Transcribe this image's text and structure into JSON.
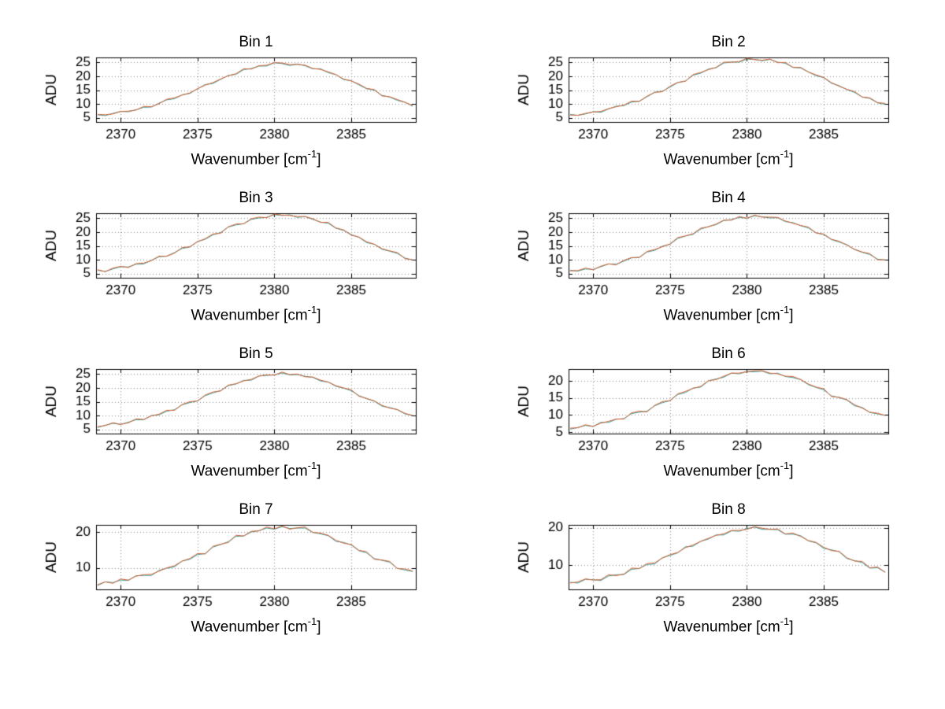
{
  "figure": {
    "background": "#ffffff"
  },
  "axis_labels": {
    "ylabel": "ADU",
    "xlabel_pre": "Wavenumber [cm",
    "xlabel_sup": "-1",
    "xlabel_post": "]"
  },
  "chart_data": {
    "type": "line",
    "grid": true,
    "xlim": [
      2368.4,
      2389.2
    ],
    "x_ticks": [
      2370,
      2375,
      2380,
      2385
    ],
    "x": [
      2368.5,
      2369,
      2369.5,
      2370,
      2370.5,
      2371,
      2371.5,
      2372,
      2372.5,
      2373,
      2373.5,
      2374,
      2374.5,
      2375,
      2375.5,
      2376,
      2376.5,
      2377,
      2377.5,
      2378,
      2378.5,
      2379,
      2379.5,
      2380,
      2380.5,
      2381,
      2381.5,
      2382,
      2382.5,
      2383,
      2383.5,
      2384,
      2384.5,
      2385,
      2385.5,
      2386,
      2386.5,
      2387,
      2387.5,
      2388,
      2388.5,
      2389
    ],
    "subplots": [
      {
        "title": "Bin 1",
        "yticks": [
          5,
          10,
          15,
          20,
          25
        ],
        "ylim": [
          3.5,
          26.8
        ],
        "series": [
          {
            "name": "trace-teal",
            "color": "#2f9e9e",
            "values": [
              6.1,
              5.8,
              6.6,
              7.3,
              7.2,
              7.9,
              8.8,
              8.9,
              10.3,
              11.5,
              11.9,
              13.3,
              13.8,
              15.5,
              17.0,
              17.4,
              18.9,
              20.3,
              20.7,
              22.4,
              22.8,
              23.7,
              23.7,
              24.9,
              24.6,
              23.9,
              24.4,
              23.8,
              22.7,
              22.7,
              21.3,
              20.6,
              18.8,
              18.4,
              16.9,
              15.5,
              15.0,
              13.1,
              12.5,
              11.3,
              10.6,
              9.2
            ]
          },
          {
            "name": "trace-orange",
            "color": "#d95f30",
            "values": [
              6.2,
              6.1,
              6.4,
              7.3,
              7.4,
              7.8,
              9.1,
              9.0,
              10.1,
              11.7,
              12.2,
              13.2,
              14.0,
              15.5,
              16.8,
              17.7,
              19.0,
              20.2,
              20.9,
              22.7,
              22.6,
              23.8,
              24.0,
              24.9,
              24.8,
              24.2,
              24.3,
              24.0,
              22.8,
              22.5,
              21.6,
              20.6,
              19.0,
              18.3,
              17.2,
              15.6,
              15.2,
              12.9,
              12.6,
              11.6,
              10.6,
              9.4
            ]
          }
        ]
      },
      {
        "title": "Bin 2",
        "yticks": [
          5,
          10,
          15,
          20,
          25
        ],
        "ylim": [
          3.5,
          26.8
        ],
        "series": [
          {
            "name": "trace-teal",
            "color": "#2f9e9e",
            "values": [
              6.2,
              5.9,
              6.4,
              7.2,
              7.0,
              8.2,
              9.2,
              9.4,
              10.7,
              11.0,
              12.6,
              14.2,
              14.6,
              16.1,
              17.7,
              18.3,
              20.4,
              21.1,
              22.6,
              23.1,
              24.8,
              25.1,
              25.1,
              26.2,
              26.1,
              25.6,
              26.1,
              25.1,
              24.7,
              23.2,
              23.0,
              21.6,
              20.2,
              19.5,
              17.5,
              16.6,
              15.2,
              14.2,
              12.5,
              12.0,
              10.4,
              9.9
            ]
          },
          {
            "name": "trace-orange",
            "color": "#d95f30",
            "values": [
              6.0,
              5.9,
              6.6,
              7.1,
              7.3,
              8.3,
              9.0,
              9.6,
              11.0,
              10.9,
              12.8,
              14.2,
              14.4,
              16.4,
              17.8,
              18.2,
              20.6,
              21.4,
              22.4,
              23.2,
              25.1,
              25.1,
              25.3,
              26.5,
              26.0,
              25.8,
              26.2,
              24.9,
              25.0,
              23.2,
              23.2,
              21.5,
              20.5,
              19.6,
              17.7,
              16.4,
              15.3,
              14.5,
              12.5,
              12.2,
              10.5,
              10.2
            ]
          }
        ]
      },
      {
        "title": "Bin 3",
        "yticks": [
          5,
          10,
          15,
          20,
          25
        ],
        "ylim": [
          3.5,
          26.8
        ],
        "series": [
          {
            "name": "trace-teal",
            "color": "#2f9e9e",
            "values": [
              6.2,
              5.8,
              6.7,
              7.5,
              7.4,
              8.4,
              8.5,
              9.8,
              11.1,
              11.3,
              12.6,
              14.1,
              14.6,
              16.6,
              17.4,
              19.0,
              19.8,
              21.8,
              22.6,
              23.0,
              24.6,
              25.1,
              25.3,
              26.3,
              26.0,
              26.2,
              25.3,
              25.6,
              24.6,
              23.6,
              23.2,
              21.4,
              20.6,
              19.1,
              18.1,
              16.2,
              15.6,
              13.8,
              13.1,
              12.3,
              10.6,
              9.9
            ]
          },
          {
            "name": "trace-orange",
            "color": "#d95f30",
            "values": [
              6.4,
              5.7,
              7.0,
              7.6,
              7.2,
              8.6,
              8.8,
              9.7,
              11.3,
              11.3,
              12.4,
              14.4,
              14.7,
              16.5,
              17.6,
              19.3,
              19.6,
              21.9,
              22.9,
              23.0,
              24.8,
              25.4,
              25.2,
              26.5,
              26.1,
              26.0,
              25.6,
              25.6,
              24.8,
              23.5,
              23.5,
              21.5,
              20.8,
              18.9,
              18.2,
              16.5,
              15.6,
              14.0,
              13.2,
              12.6,
              10.4,
              10.0
            ]
          }
        ]
      },
      {
        "title": "Bin 4",
        "yticks": [
          5,
          10,
          15,
          20,
          25
        ],
        "ylim": [
          3.5,
          26.8
        ],
        "series": [
          {
            "name": "trace-teal",
            "color": "#2f9e9e",
            "values": [
              6.2,
              5.9,
              6.7,
              6.5,
              7.5,
              8.5,
              8.4,
              9.5,
              10.7,
              10.9,
              12.8,
              13.4,
              14.9,
              15.6,
              17.7,
              18.6,
              19.2,
              21.1,
              22.0,
              22.7,
              24.2,
              24.5,
              25.3,
              25.0,
              25.9,
              25.5,
              25.1,
              25.2,
              23.8,
              23.4,
              22.3,
              21.5,
              19.7,
              19.1,
              17.3,
              16.4,
              15.5,
              13.7,
              12.7,
              11.9,
              10.2,
              9.9
            ]
          },
          {
            "name": "trace-orange",
            "color": "#d95f30",
            "values": [
              6.0,
              6.1,
              7.0,
              6.4,
              7.7,
              8.5,
              8.2,
              9.8,
              10.8,
              10.8,
              13.0,
              13.7,
              14.7,
              15.7,
              18.0,
              18.6,
              19.4,
              21.4,
              21.9,
              22.9,
              24.3,
              24.3,
              25.6,
              25.0,
              26.1,
              25.4,
              25.4,
              25.3,
              24.0,
              23.2,
              22.4,
              21.8,
              19.7,
              19.3,
              17.4,
              16.7,
              15.3,
              13.8,
              12.8,
              12.2,
              10.0,
              10.0
            ]
          }
        ]
      },
      {
        "title": "Bin 5",
        "yticks": [
          5,
          10,
          15,
          20,
          25
        ],
        "ylim": [
          3.5,
          26.8
        ],
        "series": [
          {
            "name": "trace-teal",
            "color": "#2f9e9e",
            "values": [
              5.7,
              6.5,
              7.2,
              6.8,
              7.6,
              8.5,
              8.5,
              10.0,
              10.3,
              11.6,
              12.1,
              13.9,
              14.7,
              15.3,
              17.2,
              18.2,
              19.0,
              20.8,
              21.4,
              22.7,
              22.8,
              24.3,
              24.5,
              24.7,
              25.4,
              24.7,
              24.8,
              24.2,
              23.8,
              22.5,
              22.1,
              20.6,
              19.9,
              19.0,
              17.2,
              16.1,
              15.2,
              13.4,
              12.9,
              12.1,
              10.6,
              10.1
            ]
          },
          {
            "name": "trace-orange",
            "color": "#d95f30",
            "values": [
              6.0,
              6.4,
              7.4,
              6.8,
              7.4,
              8.8,
              8.6,
              9.9,
              10.5,
              11.9,
              11.9,
              14.0,
              15.0,
              15.3,
              17.4,
              18.5,
              18.9,
              21.0,
              21.5,
              22.5,
              23.1,
              24.3,
              24.7,
              24.6,
              25.7,
              24.8,
              25.0,
              24.0,
              23.9,
              22.8,
              22.1,
              20.8,
              20.0,
              19.3,
              17.0,
              16.2,
              15.3,
              13.7,
              12.7,
              12.2,
              10.8,
              10.0
            ]
          }
        ]
      },
      {
        "title": "Bin 6",
        "yticks": [
          5,
          10,
          15,
          20
        ],
        "ylim": [
          4.5,
          23.5
        ],
        "series": [
          {
            "name": "trace-teal",
            "color": "#2f9e9e",
            "values": [
              5.8,
              6.3,
              6.9,
              6.6,
              7.8,
              7.8,
              8.7,
              8.9,
              10.4,
              10.8,
              11.1,
              12.7,
              13.6,
              14.2,
              16.0,
              16.6,
              17.9,
              18.2,
              20.0,
              20.6,
              21.1,
              22.3,
              22.1,
              22.8,
              22.7,
              22.9,
              22.1,
              22.3,
              21.3,
              21.0,
              20.4,
              18.9,
              18.1,
              17.4,
              15.6,
              15.1,
              14.4,
              12.7,
              12.2,
              10.7,
              10.3,
              9.9
            ]
          },
          {
            "name": "trace-orange",
            "color": "#d95f30",
            "values": [
              6.1,
              6.2,
              7.1,
              6.6,
              7.6,
              8.1,
              8.8,
              8.8,
              10.6,
              11.1,
              10.9,
              12.8,
              13.9,
              14.2,
              16.2,
              16.9,
              17.8,
              18.4,
              20.1,
              20.4,
              21.4,
              22.3,
              22.3,
              22.7,
              23.0,
              23.0,
              22.3,
              22.1,
              21.4,
              21.3,
              20.4,
              19.1,
              18.2,
              17.7,
              15.4,
              15.2,
              14.5,
              13.0,
              12.0,
              10.8,
              10.5,
              9.8
            ]
          }
        ]
      },
      {
        "title": "Bin 7",
        "yticks": [
          10,
          20
        ],
        "ylim": [
          4.0,
          22.0
        ],
        "series": [
          {
            "name": "trace-teal",
            "color": "#2f9e9e",
            "values": [
              5.1,
              6.1,
              5.9,
              6.6,
              6.5,
              7.8,
              7.9,
              7.9,
              9.3,
              9.9,
              10.3,
              11.9,
              12.4,
              13.7,
              14.0,
              15.8,
              16.5,
              17.3,
              18.8,
              18.9,
              20.0,
              20.4,
              21.1,
              20.8,
              21.5,
              21.0,
              21.1,
              21.1,
              19.9,
              19.5,
              19.0,
              17.4,
              17.1,
              16.4,
              14.8,
              14.2,
              12.6,
              12.1,
              11.6,
              9.9,
              9.4,
              9.0
            ]
          },
          {
            "name": "trace-orange",
            "color": "#d95f30",
            "values": [
              5.3,
              6.1,
              5.7,
              6.9,
              6.6,
              7.7,
              8.1,
              8.2,
              9.1,
              10.0,
              10.6,
              11.9,
              12.6,
              14.0,
              13.9,
              16.0,
              16.6,
              17.1,
              19.1,
              18.9,
              20.2,
              20.3,
              21.4,
              20.9,
              21.7,
              20.8,
              21.2,
              21.4,
              19.9,
              19.7,
              19.1,
              17.7,
              16.9,
              16.5,
              14.9,
              14.5,
              12.4,
              12.2,
              11.8,
              9.8,
              9.7,
              9.1
            ]
          }
        ]
      },
      {
        "title": "Bin 8",
        "yticks": [
          10,
          20
        ],
        "ylim": [
          3.5,
          20.8
        ],
        "series": [
          {
            "name": "trace-teal",
            "color": "#2f9e9e",
            "values": [
              5.4,
              5.2,
              6.2,
              6.1,
              5.9,
              7.1,
              7.4,
              7.5,
              8.9,
              9.1,
              10.2,
              10.3,
              12.0,
              12.6,
              13.3,
              14.9,
              15.1,
              16.4,
              17.0,
              18.1,
              18.1,
              19.2,
              19.1,
              19.8,
              20.2,
              19.6,
              19.6,
              19.5,
              18.3,
              18.3,
              17.9,
              16.5,
              16.0,
              14.5,
              14.1,
              13.6,
              11.8,
              11.2,
              10.7,
              9.2,
              9.3,
              8.1
            ]
          },
          {
            "name": "trace-orange",
            "color": "#d95f30",
            "values": [
              5.2,
              5.5,
              6.3,
              6.0,
              6.1,
              7.4,
              7.2,
              7.6,
              9.2,
              9.1,
              10.4,
              10.6,
              11.9,
              12.8,
              13.4,
              14.7,
              15.4,
              16.4,
              17.2,
              18.0,
              18.4,
              19.3,
              19.3,
              19.6,
              20.3,
              19.9,
              19.6,
              19.7,
              18.4,
              18.6,
              17.7,
              16.6,
              16.1,
              14.8,
              13.9,
              13.7,
              12.0,
              11.1,
              11.0,
              9.3,
              9.5,
              8.1
            ]
          }
        ]
      }
    ]
  }
}
